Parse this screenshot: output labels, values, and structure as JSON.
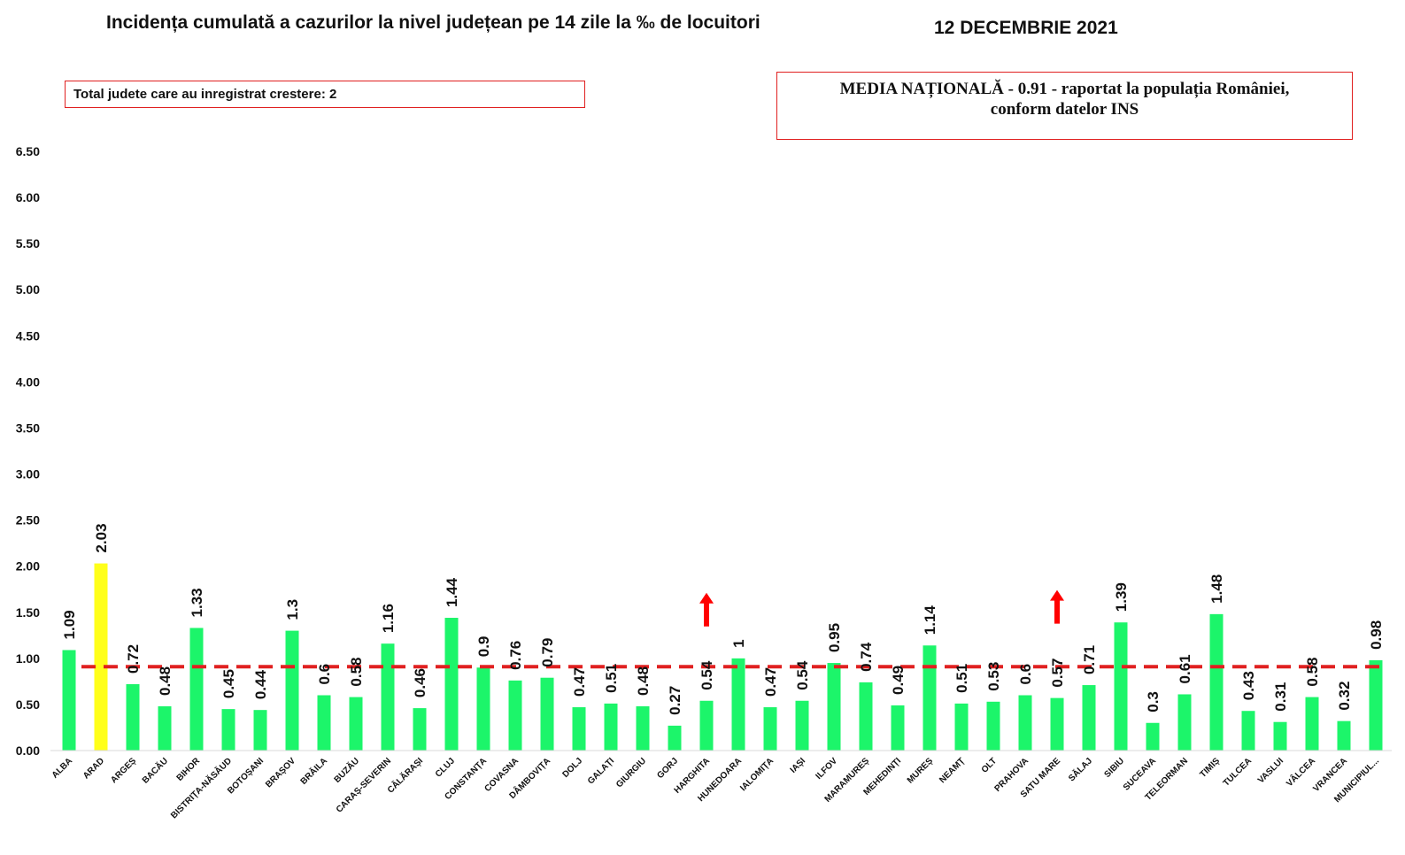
{
  "header": {
    "title": "Incidența cumulată a cazurilor la nivel județean pe 14 zile la ‰ de locuitori",
    "date": "12 DECEMBRIE 2021"
  },
  "info": {
    "total_label": "Total judete care au inregistrat crestere: 2",
    "media_line1": "MEDIA NAȚIONALĂ - 0.91 -  raportat la populația României,",
    "media_line2": "conform datelor INS"
  },
  "colors": {
    "bar": "#1cf56a",
    "highlight": "#ffff1a",
    "mean_line": "#e02020",
    "arrow": "#ff0000"
  },
  "chart_data": {
    "type": "bar",
    "categories": [
      "ALBA",
      "ARAD",
      "ARGEȘ",
      "BACĂU",
      "BIHOR",
      "BISTRIȚA-NĂSĂUD",
      "BOTOȘANI",
      "BRAȘOV",
      "BRĂILA",
      "BUZĂU",
      "CARAȘ-SEVERIN",
      "CĂLĂRAȘI",
      "CLUJ",
      "CONSTANȚA",
      "COVASNA",
      "DÂMBOVIȚA",
      "DOLJ",
      "GALAȚI",
      "GIURGIU",
      "GORJ",
      "HARGHITA",
      "HUNEDOARA",
      "IALOMIȚA",
      "IAȘI",
      "ILFOV",
      "MARAMUREȘ",
      "MEHEDINȚI",
      "MUREȘ",
      "NEAMȚ",
      "OLT",
      "PRAHOVA",
      "SATU MARE",
      "SĂLAJ",
      "SIBIU",
      "SUCEAVA",
      "TELEORMAN",
      "TIMIȘ",
      "TULCEA",
      "VASLUI",
      "VÂLCEA",
      "VRANCEA",
      "MUNICIPIUL..."
    ],
    "values": [
      1.09,
      2.03,
      0.72,
      0.48,
      1.33,
      0.45,
      0.44,
      1.3,
      0.6,
      0.58,
      1.16,
      0.46,
      1.44,
      0.9,
      0.76,
      0.79,
      0.47,
      0.51,
      0.48,
      0.27,
      0.54,
      1,
      0.47,
      0.54,
      0.95,
      0.74,
      0.49,
      1.14,
      0.51,
      0.53,
      0.6,
      0.57,
      0.71,
      1.39,
      0.3,
      0.61,
      1.48,
      0.43,
      0.31,
      0.58,
      0.32,
      0.98
    ],
    "value_labels": [
      "1.09",
      "2.03",
      "0.72",
      "0.48",
      "1.33",
      "0.45",
      "0.44",
      "1.3",
      "0.6",
      "0.58",
      "1.16",
      "0.46",
      "1.44",
      "0.9",
      "0.76",
      "0.79",
      "0.47",
      "0.51",
      "0.48",
      "0.27",
      "0.54",
      "1",
      "0.47",
      "0.54",
      "0.95",
      "0.74",
      "0.49",
      "1.14",
      "0.51",
      "0.53",
      "0.6",
      "0.57",
      "0.71",
      "1.39",
      "0.3",
      "0.61",
      "1.48",
      "0.43",
      "0.31",
      "0.58",
      "0.32",
      "0.98"
    ],
    "highlighted": [
      "ARAD"
    ],
    "increase": [
      "HARGHITA",
      "SATU MARE"
    ],
    "mean": 0.91,
    "ylim": [
      0,
      6.5
    ],
    "yticks": [
      "0.00",
      "0.50",
      "1.00",
      "1.50",
      "2.00",
      "2.50",
      "3.00",
      "3.50",
      "4.00",
      "4.50",
      "5.00",
      "5.50",
      "6.00",
      "6.50"
    ],
    "grid": false,
    "legend": "none"
  }
}
